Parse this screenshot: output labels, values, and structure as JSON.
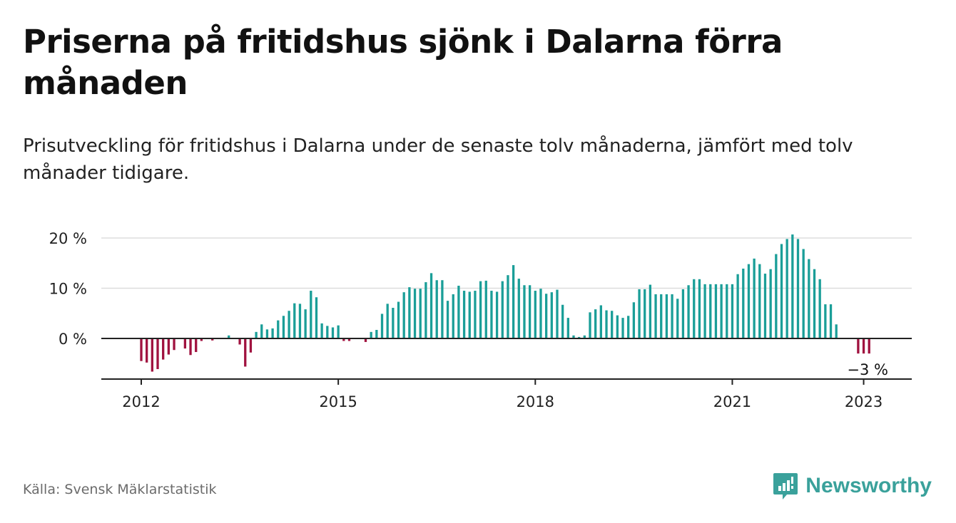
{
  "header": {
    "title": "Priserna på fritidshus sjönk i Dalarna förra månaden",
    "subtitle": "Prisutveckling för fritidshus i Dalarna under de senaste tolv månaderna, jämfört med tolv månader tidigare."
  },
  "footer": {
    "source": "Källa: Svensk Mäklarstatistik",
    "brand": "Newsworthy",
    "logo_icon": "bar-chart-speech-bubble-icon"
  },
  "colors": {
    "positive": "#1a9e98",
    "negative": "#a0123f",
    "brand": "#3aa19b",
    "grid": "#dddddd",
    "axis": "#222222"
  },
  "chart_data": {
    "type": "bar",
    "ylim": [
      -8,
      22
    ],
    "yticks": [
      0,
      10,
      20
    ],
    "ytick_labels": [
      "0 %",
      "10 %",
      "20 %"
    ],
    "xticks": [
      2012,
      2015,
      2018,
      2021,
      2023
    ],
    "xtick_labels": [
      "2012",
      "2015",
      "2018",
      "2021",
      "2023"
    ],
    "x_start": {
      "year": 2012,
      "month": 1
    },
    "values": [
      -4.5,
      -4.8,
      -6.6,
      -6.1,
      -4.2,
      -3.2,
      -2.3,
      null,
      -2.0,
      -3.3,
      -2.7,
      -0.5,
      null,
      -0.4,
      null,
      null,
      0.6,
      null,
      -1.2,
      -5.6,
      -2.8,
      1.3,
      2.8,
      1.8,
      2.0,
      3.6,
      4.5,
      5.5,
      7.0,
      6.9,
      5.8,
      9.5,
      8.2,
      3.0,
      2.5,
      2.2,
      2.6,
      -0.5,
      -0.5,
      null,
      null,
      -0.7,
      1.3,
      1.7,
      4.9,
      6.9,
      6.1,
      7.3,
      9.2,
      10.2,
      9.9,
      9.9,
      11.2,
      13.0,
      11.6,
      11.6,
      7.5,
      8.8,
      10.5,
      9.5,
      9.3,
      9.5,
      11.4,
      11.5,
      9.5,
      9.3,
      11.4,
      12.6,
      14.6,
      11.9,
      10.6,
      10.6,
      9.5,
      9.9,
      8.9,
      9.2,
      9.7,
      6.7,
      4.1,
      0.6,
      0.3,
      0.6,
      5.2,
      5.8,
      6.6,
      5.6,
      5.5,
      4.6,
      4.1,
      4.5,
      7.2,
      9.8,
      9.8,
      10.7,
      8.8,
      8.8,
      8.8,
      8.8,
      7.9,
      9.8,
      10.6,
      11.8,
      11.8,
      10.8,
      10.8,
      10.8,
      10.8,
      10.8,
      10.8,
      12.8,
      13.9,
      14.8,
      15.9,
      14.8,
      12.9,
      13.8,
      16.8,
      18.8,
      19.8,
      20.7,
      19.8,
      17.8,
      15.8,
      13.8,
      11.8,
      6.8,
      6.8,
      2.8,
      null,
      null,
      null,
      -3.0,
      -3.0,
      -3.0
    ],
    "last_value_label": "−3 %"
  }
}
